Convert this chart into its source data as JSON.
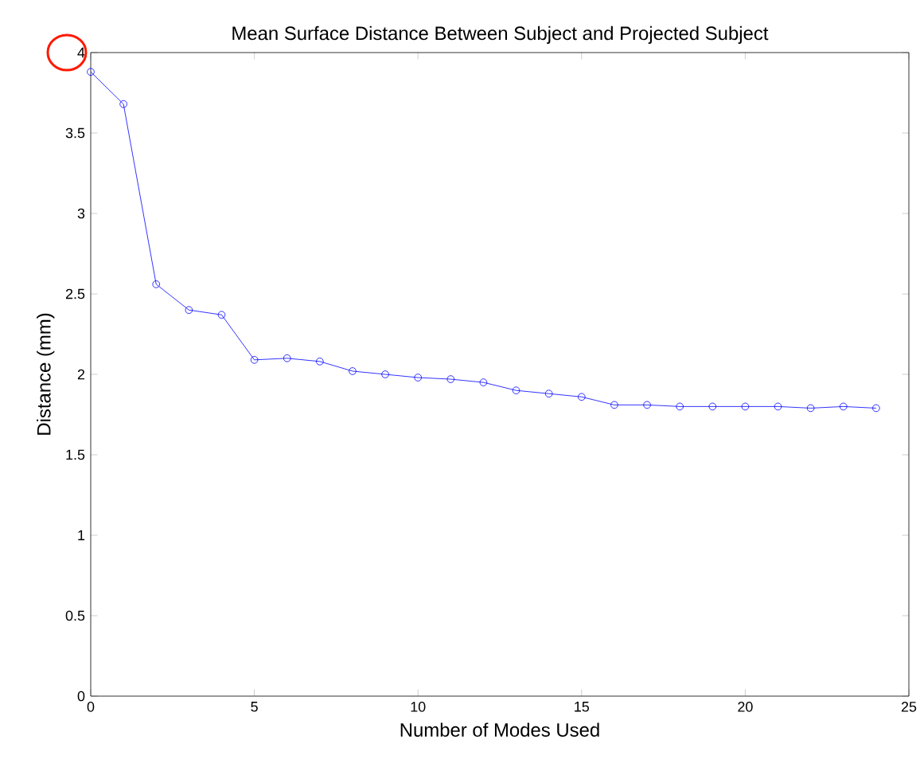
{
  "chart_data": {
    "type": "line",
    "title": "Mean Surface Distance Between Subject and Projected Subject",
    "xlabel": "Number of Modes Used",
    "ylabel": "Distance (mm)",
    "x": [
      0,
      1,
      2,
      3,
      4,
      5,
      6,
      7,
      8,
      9,
      10,
      11,
      12,
      13,
      14,
      15,
      16,
      17,
      18,
      19,
      20,
      21,
      22,
      23,
      24
    ],
    "series": [
      {
        "color": "#0000ff",
        "values": [
          3.88,
          3.68,
          2.56,
          2.4,
          2.37,
          2.09,
          2.1,
          2.08,
          2.02,
          2.0,
          1.98,
          1.97,
          1.95,
          1.9,
          1.88,
          1.86,
          1.81,
          1.81,
          1.8,
          1.8,
          1.8,
          1.8,
          1.79,
          1.8,
          1.79
        ]
      }
    ],
    "xlim": [
      0,
      25
    ],
    "xticks": [
      0,
      5,
      10,
      15,
      20,
      25
    ],
    "ylim": [
      0,
      4
    ],
    "yticks": [
      0,
      0.5,
      1,
      1.5,
      2,
      2.5,
      3,
      3.5,
      4
    ],
    "marker": "circle",
    "line_style": "solid"
  }
}
